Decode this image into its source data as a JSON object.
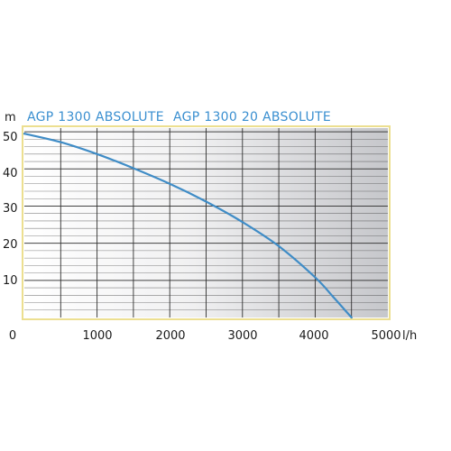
{
  "chart_data": {
    "type": "line",
    "y_unit": "m",
    "x_unit": "l/h",
    "legend": [
      "AGP 1300 ABSOLUTE",
      "AGP 1300 20 ABSOLUTE"
    ],
    "x_ticks": [
      "0",
      "1000",
      "2000",
      "3000",
      "4000",
      "5000"
    ],
    "y_ticks": [
      "10",
      "20",
      "30",
      "40",
      "50"
    ],
    "xlim": [
      0,
      5000
    ],
    "ylim": [
      0,
      51
    ],
    "grid": true,
    "series": [
      {
        "x": [
          0,
          500,
          1000,
          1500,
          2000,
          2500,
          3000,
          3500,
          4000,
          4250,
          4500
        ],
        "y": [
          49.5,
          47.2,
          44.0,
          40.2,
          36.0,
          31.2,
          25.7,
          19.2,
          10.8,
          5.5,
          0
        ]
      }
    ],
    "colors": {
      "curve": "#3f8cc6",
      "legend": "#3a8fd0",
      "frame": "#ecdf90",
      "grid": "#2f2f2f"
    }
  }
}
